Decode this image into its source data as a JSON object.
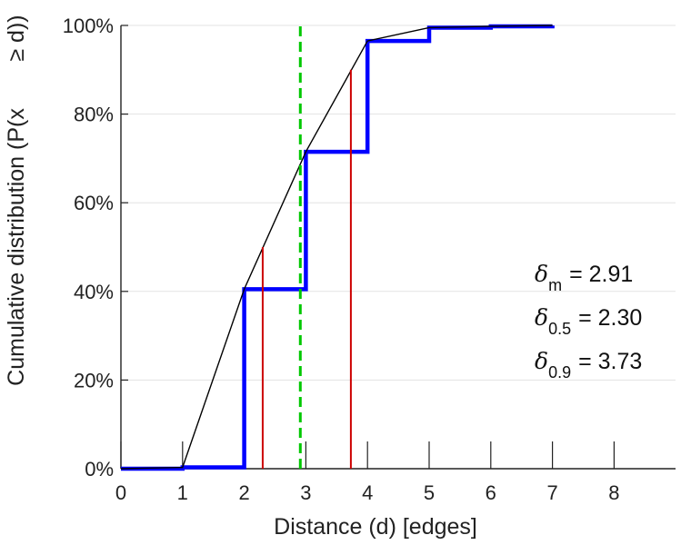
{
  "chart_data": {
    "type": "line",
    "xlabel": "Distance (d) [edges]",
    "ylabel": "Cumulative distribution (P(x",
    "ylabel_suffix": "≥ d))",
    "xlim": [
      0,
      9
    ],
    "ylim": [
      0,
      100
    ],
    "x_ticks": [
      "0",
      "1",
      "2",
      "3",
      "4",
      "5",
      "6",
      "7",
      "8"
    ],
    "y_ticks": [
      "0%",
      "20%",
      "40%",
      "60%",
      "80%",
      "100%"
    ],
    "grid": "horizontal",
    "series": [
      {
        "style": "step",
        "color": "#0000ff",
        "points": [
          [
            0,
            0
          ],
          [
            1,
            0.3
          ],
          [
            2,
            40.5
          ],
          [
            3,
            71.5
          ],
          [
            4,
            96.5
          ],
          [
            5,
            99.5
          ],
          [
            6,
            99.8
          ],
          [
            7,
            100
          ]
        ]
      },
      {
        "style": "line",
        "color": "#000000",
        "points": [
          [
            0,
            0
          ],
          [
            1,
            0.3
          ],
          [
            2,
            40.5
          ],
          [
            3,
            71.5
          ],
          [
            4,
            96.5
          ],
          [
            5,
            99.5
          ],
          [
            6,
            99.8
          ],
          [
            7,
            100
          ]
        ]
      }
    ],
    "markers": [
      {
        "kind": "mean",
        "x": 2.91,
        "color": "#00c800",
        "dashed": true
      },
      {
        "kind": "median",
        "x": 2.3,
        "y": 50,
        "color": "#cc0000"
      },
      {
        "kind": "p90",
        "x": 3.73,
        "y": 90,
        "color": "#cc0000"
      }
    ],
    "annotations": [
      {
        "symbol": "δ",
        "sub": "m",
        "value": "= 2.91"
      },
      {
        "symbol": "δ",
        "sub": "0.5",
        "value": "= 2.30"
      },
      {
        "symbol": "δ",
        "sub": "0.9",
        "value": "= 3.73"
      }
    ]
  }
}
